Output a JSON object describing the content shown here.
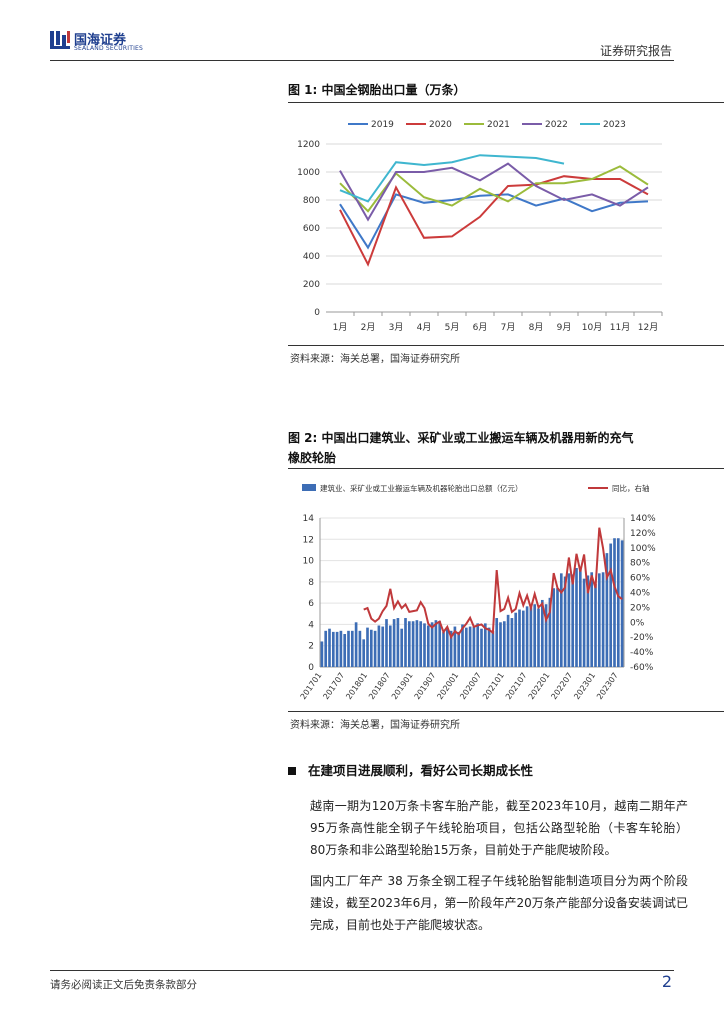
{
  "header": {
    "logo_cn": "国海证券",
    "logo_en": "SEALAND SECURITIES",
    "report_type": "证券研究报告"
  },
  "figure1": {
    "title": "图 1:  中国全钢胎出口量（万条）",
    "source": "资料来源：海关总署，国海证券研究所",
    "chart_data": {
      "type": "line",
      "categories": [
        "1月",
        "2月",
        "3月",
        "4月",
        "5月",
        "6月",
        "7月",
        "8月",
        "9月",
        "10月",
        "11月",
        "12月"
      ],
      "ylim": [
        0,
        1200
      ],
      "yticks": [
        "0",
        "200",
        "400",
        "600",
        "800",
        "1000",
        "1200"
      ],
      "series": [
        {
          "name": "2019",
          "color": "#3f78c8",
          "values": [
            770,
            460,
            840,
            780,
            800,
            830,
            840,
            760,
            810,
            720,
            780,
            790
          ]
        },
        {
          "name": "2020",
          "color": "#cc3b3b",
          "values": [
            730,
            340,
            890,
            530,
            540,
            680,
            900,
            910,
            970,
            950,
            950,
            840
          ]
        },
        {
          "name": "2021",
          "color": "#9bbb3b",
          "values": [
            920,
            720,
            990,
            820,
            760,
            880,
            790,
            920,
            920,
            950,
            1040,
            910
          ]
        },
        {
          "name": "2022",
          "color": "#7a5ca8",
          "values": [
            1010,
            660,
            1000,
            1000,
            1030,
            940,
            1060,
            900,
            800,
            840,
            760,
            890
          ]
        },
        {
          "name": "2023",
          "color": "#3fb6cf",
          "values": [
            870,
            790,
            1070,
            1050,
            1070,
            1120,
            1110,
            1100,
            1060,
            null,
            null,
            null
          ]
        }
      ]
    }
  },
  "figure2": {
    "title_line1": "图 2:  中国出口建筑业、采矿业或工业搬运车辆及机器用新的充气",
    "title_line2": "橡胶轮胎",
    "source": "资料来源：海关总署，国海证券研究所",
    "chart_data": {
      "type": "bar+line",
      "bar_series_name": "建筑业、采矿业或工业搬运车辆及机器轮胎出口总额（亿元）",
      "line_series_name": "同比，右轴",
      "bar_color": "#3d6db5",
      "line_color": "#c0393b",
      "ylim_left": [
        0,
        14
      ],
      "ylim_right": [
        -60,
        140
      ],
      "left_ticks": [
        "0",
        "2",
        "4",
        "6",
        "8",
        "10",
        "12",
        "14"
      ],
      "right_ticks": [
        "-60%",
        "-40%",
        "-20%",
        "0%",
        "20%",
        "40%",
        "60%",
        "80%",
        "100%",
        "120%",
        "140%"
      ],
      "x_tick_labels": [
        "201701",
        "201707",
        "201801",
        "201807",
        "201901",
        "201907",
        "202001",
        "202007",
        "202101",
        "202107",
        "202201",
        "202207",
        "202301",
        "202307"
      ],
      "bar_values": [
        2.4,
        3.4,
        3.6,
        3.3,
        3.3,
        3.4,
        3.1,
        3.4,
        3.4,
        4.2,
        3.4,
        2.6,
        3.7,
        3.5,
        3.4,
        3.9,
        3.8,
        4.5,
        3.9,
        4.5,
        4.6,
        3.6,
        4.6,
        4.3,
        4.3,
        4.4,
        4.3,
        4.1,
        3.9,
        4.2,
        4.4,
        4.3,
        3.3,
        3.6,
        3.4,
        3.8,
        3.3,
        4.0,
        3.7,
        3.8,
        3.8,
        4.1,
        3.6,
        4.1,
        3.7,
        3.4,
        4.6,
        4.2,
        4.3,
        4.9,
        4.6,
        5.1,
        5.4,
        5.3,
        5.7,
        5.6,
        5.9,
        5.5,
        6.3,
        5.9,
        6.5,
        7.4,
        7.4,
        8.8,
        8.5,
        8.8,
        8.7,
        9.3,
        9.3,
        8.3,
        8.6,
        8.9,
        7.8,
        8.8,
        8.9,
        10.7,
        11.6,
        12.1,
        12.1,
        11.9
      ],
      "line_values": [
        null,
        null,
        null,
        null,
        null,
        null,
        null,
        null,
        null,
        null,
        null,
        17,
        19,
        5,
        1,
        5,
        15,
        22,
        45,
        19,
        28,
        19,
        24,
        14,
        15,
        16,
        27,
        19,
        -2,
        -7,
        -2,
        1,
        -13,
        -6,
        -20,
        -12,
        -16,
        -8,
        -2,
        6,
        -6,
        -4,
        -3,
        -8,
        -10,
        -14,
        70,
        15,
        18,
        33,
        14,
        18,
        39,
        23,
        36,
        19,
        38,
        20,
        25,
        3,
        14,
        66,
        46,
        40,
        47,
        87,
        51,
        92,
        68,
        91,
        39,
        63,
        46,
        127,
        99,
        60,
        70,
        48,
        35,
        31
      ]
    }
  },
  "section": {
    "heading": "在建项目进展顺利，看好公司长期成长性",
    "para1": "越南一期为120万条卡客车胎产能，截至2023年10月，越南二期年产95万条高性能全钢子午线轮胎项目，包括公路型轮胎（卡客车轮胎）80万条和非公路型轮胎15万条，目前处于产能爬坡阶段。",
    "para2": "国内工厂年产 38 万条全钢工程子午线轮胎智能制造项目分为两个阶段建设，截至2023年6月，第一阶段年产20万条产能部分设备安装调试已完成，目前也处于产能爬坡状态。"
  },
  "footer": {
    "disclaimer": "请务必阅读正文后免责条款部分",
    "page_number": "2"
  }
}
